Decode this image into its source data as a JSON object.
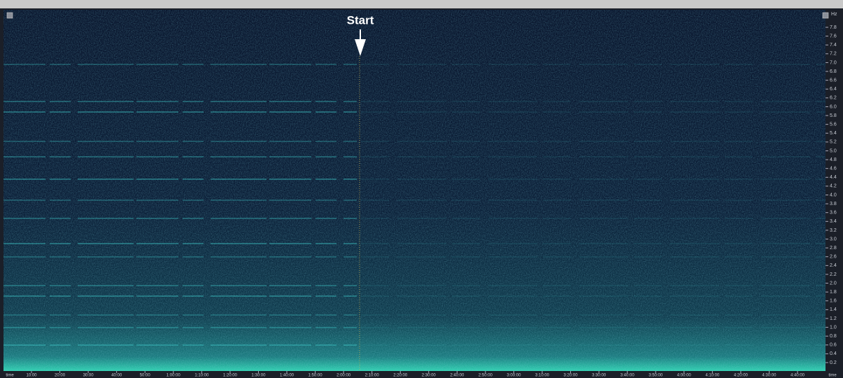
{
  "annotation": {
    "label": "Start"
  },
  "y_axis": {
    "unit": "Hz",
    "labels": [
      "7.8",
      "7.6",
      "7.4",
      "7.2",
      "7.0",
      "6.8",
      "6.6",
      "6.4",
      "6.2",
      "6.0",
      "5.8",
      "5.6",
      "5.4",
      "5.2",
      "5.0",
      "4.8",
      "4.6",
      "4.4",
      "4.2",
      "4.0",
      "3.8",
      "3.6",
      "3.4",
      "3.2",
      "3.0",
      "2.8",
      "2.6",
      "2.4",
      "2.2",
      "2.0",
      "1.8",
      "1.6",
      "1.4",
      "1.2",
      "1.0",
      "0.8",
      "0.6",
      "0.4",
      "0.2"
    ]
  },
  "x_axis": {
    "unit_left": "time",
    "unit_right": "time",
    "labels": [
      "10:00",
      "20:00",
      "30:00",
      "40:00",
      "50:00",
      "1:00:00",
      "1:10:00",
      "1:20:00",
      "1:30:00",
      "1:40:00",
      "1:50:00",
      "2:00:00",
      "2:10:00",
      "2:20:00",
      "2:30:00",
      "2:40:00",
      "2:50:00",
      "3:00:00",
      "3:10:00",
      "3:20:00",
      "3:30:00",
      "3:40:00",
      "3:50:00",
      "4:00:00",
      "4:10:00",
      "4:20:00",
      "4:30:00",
      "4:40:00"
    ]
  }
}
